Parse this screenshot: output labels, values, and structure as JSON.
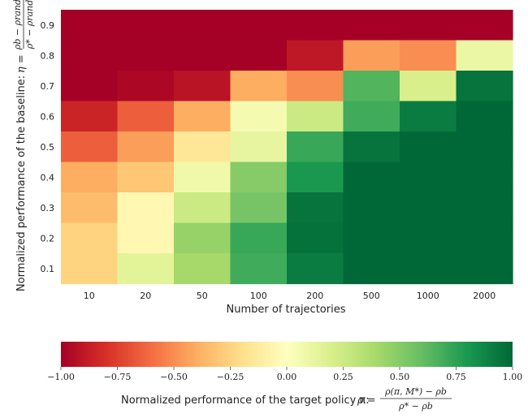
{
  "chart_data": {
    "type": "heatmap",
    "x_categories": [
      "10",
      "20",
      "50",
      "100",
      "200",
      "500",
      "1000",
      "2000"
    ],
    "y_categories": [
      "0.9",
      "0.8",
      "0.7",
      "0.6",
      "0.5",
      "0.4",
      "0.3",
      "0.2",
      "0.1"
    ],
    "values": [
      [
        -1.0,
        -1.0,
        -1.0,
        -1.0,
        -1.0,
        -1.0,
        -1.0,
        -1.0
      ],
      [
        -1.0,
        -1.0,
        -1.0,
        -1.0,
        -0.9,
        -0.45,
        -0.5,
        0.1
      ],
      [
        -1.0,
        -0.97,
        -0.92,
        -0.4,
        -0.5,
        0.65,
        0.2,
        0.95
      ],
      [
        -0.85,
        -0.65,
        -0.4,
        0.06,
        0.25,
        0.7,
        0.92,
        1.0
      ],
      [
        -0.65,
        -0.45,
        -0.15,
        0.12,
        0.72,
        0.95,
        1.05,
        1.1
      ],
      [
        -0.4,
        -0.3,
        0.08,
        0.5,
        0.8,
        1.1,
        1.1,
        1.1
      ],
      [
        -0.35,
        -0.05,
        0.25,
        0.55,
        0.95,
        1.1,
        1.1,
        1.1
      ],
      [
        -0.25,
        -0.05,
        0.45,
        0.72,
        0.96,
        1.1,
        1.1,
        1.1
      ],
      [
        -0.25,
        0.15,
        0.4,
        0.7,
        0.92,
        1.1,
        1.1,
        1.1
      ]
    ],
    "xlabel": "Number of trajectories",
    "ylabel_text": "Normalized performance of the baseline:",
    "ylabel_eta": "η =",
    "ylabel_frac_num": "ρb − ρrand",
    "ylabel_frac_den": "ρ* − ρrand",
    "colorbar": {
      "range": [
        -1.0,
        1.0
      ],
      "ticks": [
        "−1.00",
        "−0.75",
        "−0.50",
        "−0.25",
        "0.00",
        "0.25",
        "0.50",
        "0.75",
        "1.00"
      ],
      "label_text": "Normalized performance of the target policy π:",
      "label_rho": "ρ =",
      "label_frac_num": "ρ(π, M*) − ρb",
      "label_frac_den": "ρ* − ρb"
    },
    "colormap": [
      "#a50026",
      "#d73027",
      "#f46d43",
      "#fdae61",
      "#fee08b",
      "#ffffbf",
      "#d9ef8b",
      "#a6d96a",
      "#66bd63",
      "#1a9850",
      "#006837"
    ]
  }
}
